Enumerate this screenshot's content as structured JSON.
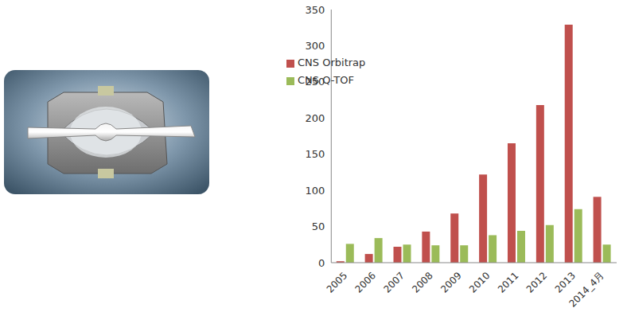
{
  "chart_data": {
    "type": "bar",
    "categories": [
      "2005",
      "2006",
      "2007",
      "2008",
      "2009",
      "2010",
      "2011",
      "2012",
      "2013",
      "2014_4月"
    ],
    "series": [
      {
        "name": "CNS Orbitrap",
        "color": "#c0504d",
        "values": [
          2,
          12,
          22,
          43,
          68,
          122,
          165,
          218,
          329,
          91
        ]
      },
      {
        "name": "CNS Q-TOF",
        "color": "#9bbb59",
        "values": [
          26,
          34,
          25,
          24,
          24,
          38,
          44,
          52,
          74,
          25
        ]
      }
    ],
    "ylim": [
      0,
      350
    ],
    "yticks": [
      0,
      50,
      100,
      150,
      200,
      250,
      300,
      350
    ],
    "grid": false,
    "legend": "top-left"
  }
}
